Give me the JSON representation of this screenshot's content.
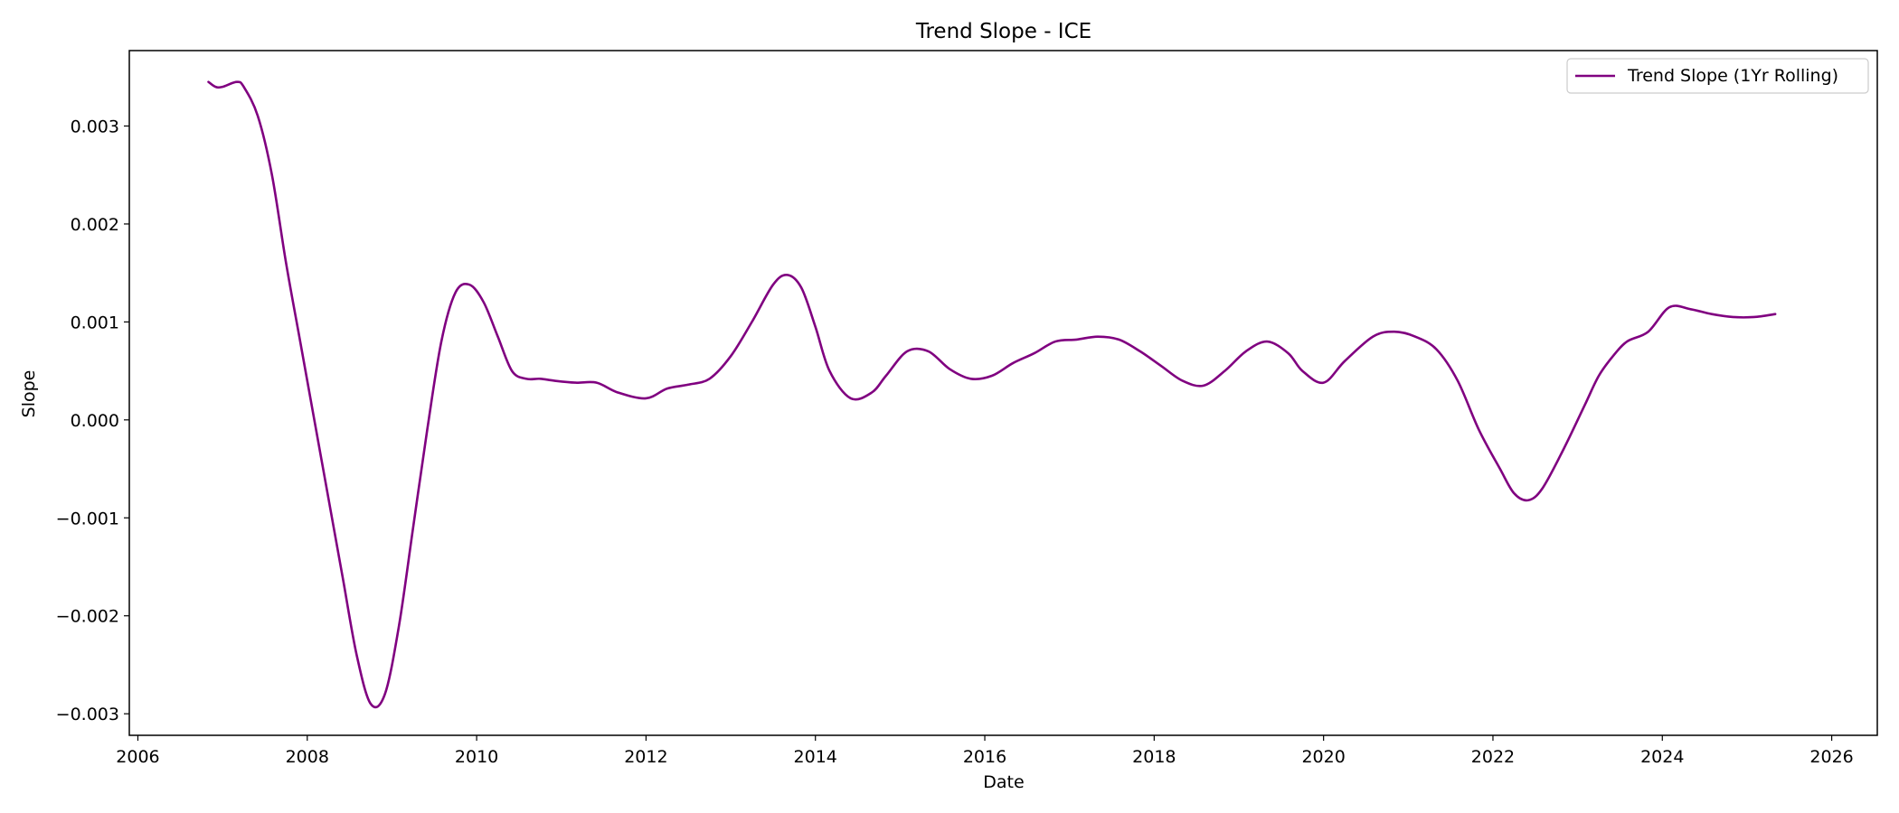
{
  "chart_data": {
    "type": "line",
    "title": "Trend Slope - ICE",
    "xlabel": "Date",
    "ylabel": "Slope",
    "xlim": [
      "2005-11-25",
      "2026-07-15"
    ],
    "ylim": [
      -0.00322,
      0.00377
    ],
    "x_ticks": [
      "2006",
      "2008",
      "2010",
      "2012",
      "2014",
      "2016",
      "2018",
      "2020",
      "2022",
      "2024",
      "2026"
    ],
    "y_ticks": [
      {
        "value": -0.003,
        "label": "−0.003"
      },
      {
        "value": -0.002,
        "label": "−0.002"
      },
      {
        "value": -0.001,
        "label": "−0.001"
      },
      {
        "value": 0.0,
        "label": "0.000"
      },
      {
        "value": 0.001,
        "label": "0.001"
      },
      {
        "value": 0.002,
        "label": "0.002"
      },
      {
        "value": 0.003,
        "label": "0.003"
      }
    ],
    "grid": false,
    "legend_position": "top-right",
    "series": [
      {
        "name": "Trend Slope (1Yr Rolling)",
        "color": "#800080",
        "x": [
          "2006-11-01",
          "2006-12-01",
          "2007-01-01",
          "2007-03-01",
          "2007-04-01",
          "2007-06-01",
          "2007-08-01",
          "2007-10-01",
          "2007-12-01",
          "2008-02-01",
          "2008-04-01",
          "2008-06-01",
          "2008-08-01",
          "2008-10-01",
          "2008-12-01",
          "2009-02-01",
          "2009-04-01",
          "2009-06-01",
          "2009-08-01",
          "2009-10-01",
          "2009-12-01",
          "2010-02-01",
          "2010-04-01",
          "2010-06-01",
          "2010-08-01",
          "2010-10-01",
          "2010-12-01",
          "2011-03-01",
          "2011-06-01",
          "2011-09-01",
          "2012-01-01",
          "2012-04-01",
          "2012-07-01",
          "2012-10-01",
          "2013-01-01",
          "2013-04-01",
          "2013-07-01",
          "2013-09-01",
          "2013-11-01",
          "2014-01-01",
          "2014-03-01",
          "2014-06-01",
          "2014-09-01",
          "2014-11-01",
          "2015-02-01",
          "2015-05-01",
          "2015-08-01",
          "2015-11-01",
          "2016-02-01",
          "2016-05-01",
          "2016-08-01",
          "2016-11-01",
          "2017-02-01",
          "2017-05-01",
          "2017-08-01",
          "2017-11-01",
          "2018-02-01",
          "2018-05-01",
          "2018-08-01",
          "2018-11-01",
          "2019-02-01",
          "2019-05-01",
          "2019-08-01",
          "2019-10-01",
          "2020-01-01",
          "2020-04-01",
          "2020-08-01",
          "2020-11-01",
          "2021-02-01",
          "2021-05-01",
          "2021-08-01",
          "2021-11-01",
          "2022-02-01",
          "2022-04-01",
          "2022-06-01",
          "2022-08-01",
          "2022-11-01",
          "2023-02-01",
          "2023-04-01",
          "2023-06-01",
          "2023-08-01",
          "2023-11-01",
          "2024-02-01",
          "2024-05-01",
          "2024-08-01",
          "2024-11-01",
          "2025-02-01",
          "2025-05-01"
        ],
        "values": [
          0.00345,
          0.0034,
          0.0034,
          0.00345,
          0.0034,
          0.0031,
          0.0025,
          0.0016,
          0.0008,
          0.0,
          -0.0008,
          -0.0016,
          -0.0024,
          -0.0029,
          -0.0028,
          -0.0021,
          -0.0011,
          -0.0001,
          0.0008,
          0.0013,
          0.00138,
          0.0012,
          0.00085,
          0.0005,
          0.00042,
          0.00042,
          0.0004,
          0.00038,
          0.00038,
          0.00028,
          0.00022,
          0.00032,
          0.00036,
          0.00042,
          0.00065,
          0.001,
          0.00138,
          0.00148,
          0.00135,
          0.00095,
          0.0005,
          0.00022,
          0.00028,
          0.00045,
          0.0007,
          0.0007,
          0.00052,
          0.00042,
          0.00045,
          0.00058,
          0.00068,
          0.0008,
          0.00082,
          0.00085,
          0.00082,
          0.0007,
          0.00055,
          0.0004,
          0.00035,
          0.0005,
          0.0007,
          0.0008,
          0.00068,
          0.0005,
          0.00038,
          0.0006,
          0.00085,
          0.0009,
          0.00085,
          0.00072,
          0.0004,
          -0.0001,
          -0.0005,
          -0.00075,
          -0.00082,
          -0.0007,
          -0.0003,
          0.00015,
          0.00045,
          0.00065,
          0.0008,
          0.0009,
          0.00115,
          0.00113,
          0.00108,
          0.00105,
          0.00105,
          0.00108
        ]
      }
    ]
  }
}
